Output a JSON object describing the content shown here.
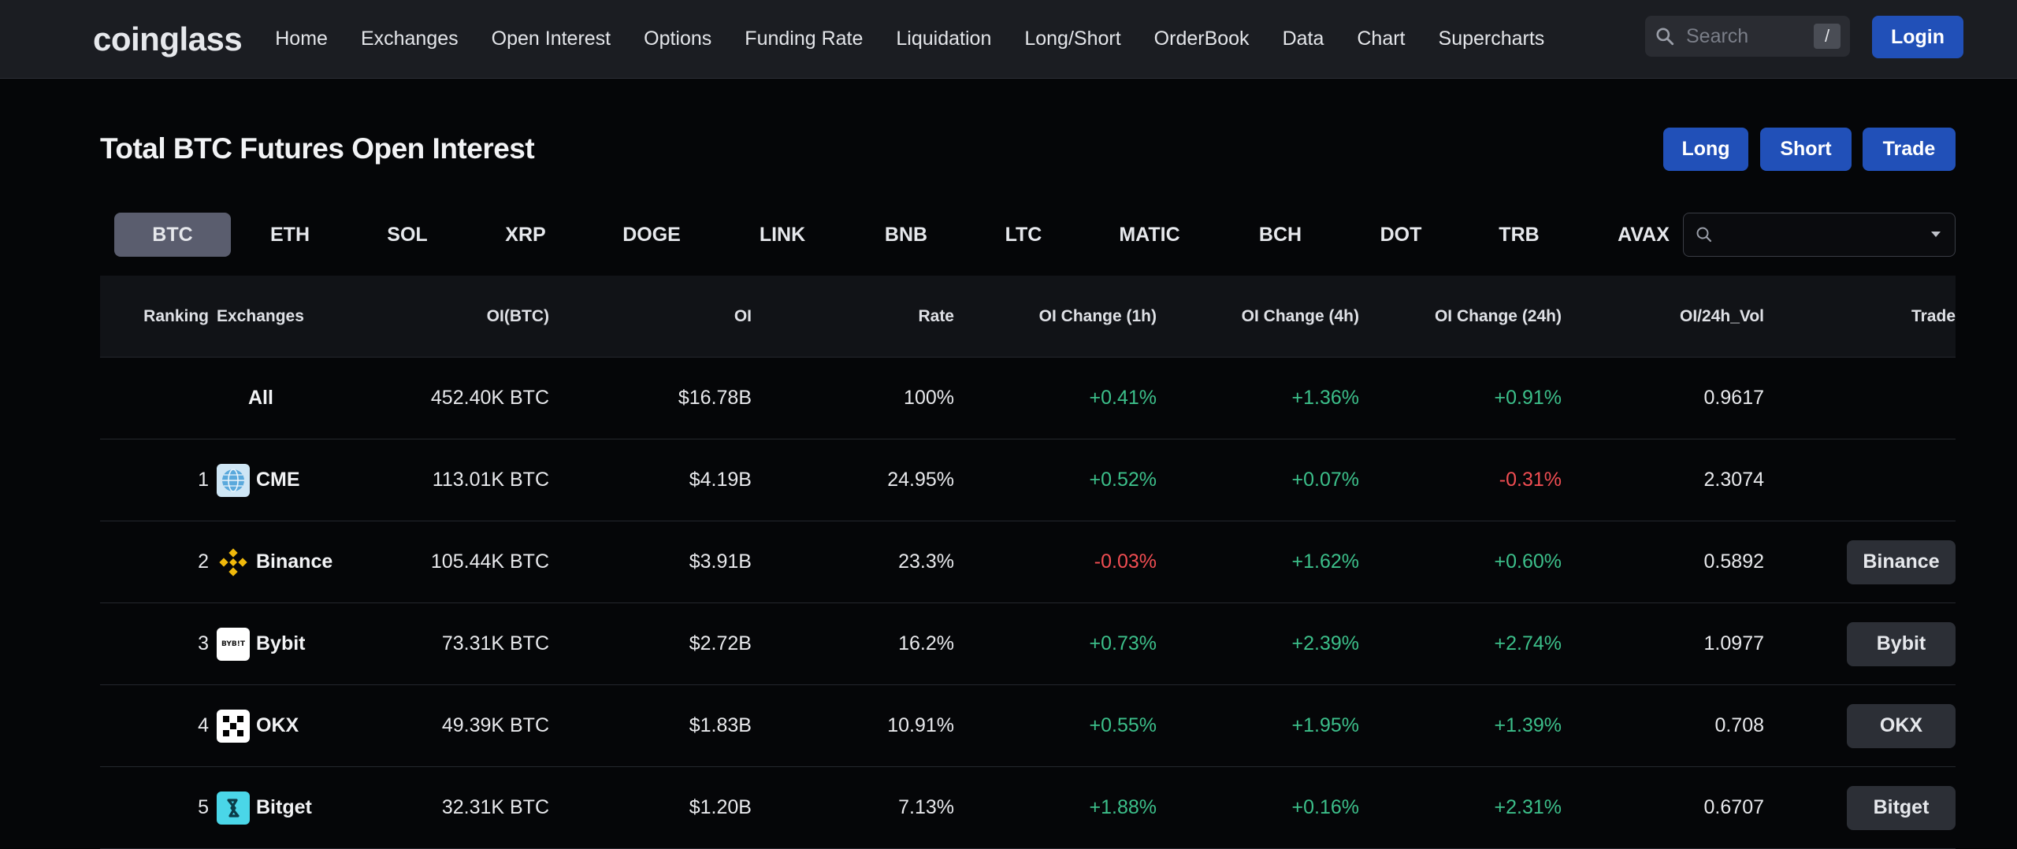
{
  "nav": {
    "logo": "coinglass",
    "links": [
      "Home",
      "Exchanges",
      "Open Interest",
      "Options",
      "Funding Rate",
      "Liquidation",
      "Long/Short",
      "OrderBook",
      "Data",
      "Chart",
      "Supercharts"
    ],
    "search_placeholder": "Search",
    "search_shortcut": "/",
    "login_label": "Login"
  },
  "header": {
    "title": "Total BTC Futures Open Interest",
    "actions": [
      "Long",
      "Short",
      "Trade"
    ]
  },
  "coins": {
    "tabs": [
      "BTC",
      "ETH",
      "SOL",
      "XRP",
      "DOGE",
      "LINK",
      "BNB",
      "LTC",
      "MATIC",
      "BCH",
      "DOT",
      "TRB",
      "AVAX"
    ],
    "active": "BTC",
    "select_value": ""
  },
  "table": {
    "headers": [
      "Ranking",
      "Exchanges",
      "OI(BTC)",
      "OI",
      "Rate",
      "OI Change (1h)",
      "OI Change (4h)",
      "OI Change (24h)",
      "OI/24h_Vol",
      "Trade"
    ],
    "all_row": {
      "label": "All",
      "oi_btc": "452.40K BTC",
      "oi": "$16.78B",
      "rate": "100%",
      "ch1h": "+0.41%",
      "ch4h": "+1.36%",
      "ch24h": "+0.91%",
      "vol": "0.9617"
    },
    "rows": [
      {
        "rank": "1",
        "name": "CME",
        "oi_btc": "113.01K BTC",
        "oi": "$4.19B",
        "rate": "24.95%",
        "ch1h": "+0.52%",
        "ch4h": "+0.07%",
        "ch24h": "-0.31%",
        "vol": "2.3074",
        "trade": ""
      },
      {
        "rank": "2",
        "name": "Binance",
        "oi_btc": "105.44K BTC",
        "oi": "$3.91B",
        "rate": "23.3%",
        "ch1h": "-0.03%",
        "ch4h": "+1.62%",
        "ch24h": "+0.60%",
        "vol": "0.5892",
        "trade": "Binance"
      },
      {
        "rank": "3",
        "name": "Bybit",
        "oi_btc": "73.31K BTC",
        "oi": "$2.72B",
        "rate": "16.2%",
        "ch1h": "+0.73%",
        "ch4h": "+2.39%",
        "ch24h": "+2.74%",
        "vol": "1.0977",
        "trade": "Bybit"
      },
      {
        "rank": "4",
        "name": "OKX",
        "oi_btc": "49.39K BTC",
        "oi": "$1.83B",
        "rate": "10.91%",
        "ch1h": "+0.55%",
        "ch4h": "+1.95%",
        "ch24h": "+1.39%",
        "vol": "0.708",
        "trade": "OKX"
      },
      {
        "rank": "5",
        "name": "Bitget",
        "oi_btc": "32.31K BTC",
        "oi": "$1.20B",
        "rate": "7.13%",
        "ch1h": "+1.88%",
        "ch4h": "+0.16%",
        "ch24h": "+2.31%",
        "vol": "0.6707",
        "trade": "Bitget"
      }
    ],
    "logo_bybit_text": "BYB!T"
  },
  "colors": {
    "positive": "#3cbf8a",
    "negative": "#f04d52",
    "accent": "#2150b8"
  }
}
